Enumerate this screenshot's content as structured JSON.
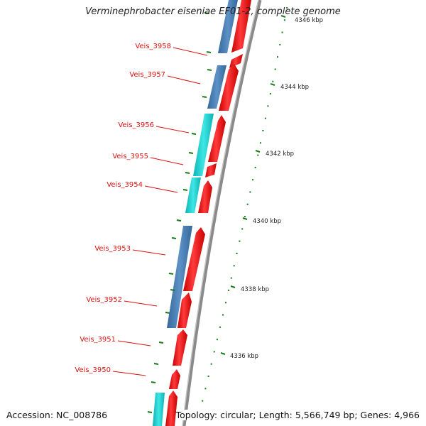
{
  "title": "Verminephrobacter eiseniae EF01-2, complete genome",
  "accession": "Accession: NC_008786",
  "summary": "Topology: circular; Length: 5,566,749 bp; Genes: 4,966",
  "scale_labels": [
    "4346 kbp",
    "4344 kbp",
    "4342 kbp",
    "4340 kbp",
    "4338 kbp",
    "4336 kbp"
  ],
  "gene_labels": [
    "Veis_3958",
    "Veis_3957",
    "Veis_3956",
    "Veis_3955",
    "Veis_3954",
    "Veis_3953",
    "Veis_3952",
    "Veis_3951",
    "Veis_3950"
  ],
  "colors": {
    "cds_forward": "#ee1111",
    "gene_blue": "#4a7fb5",
    "gene_cyan": "#1ccfcf",
    "backbone": "#8a8a8a",
    "tick": "#1a7a1a",
    "label": "#dd1111"
  }
}
